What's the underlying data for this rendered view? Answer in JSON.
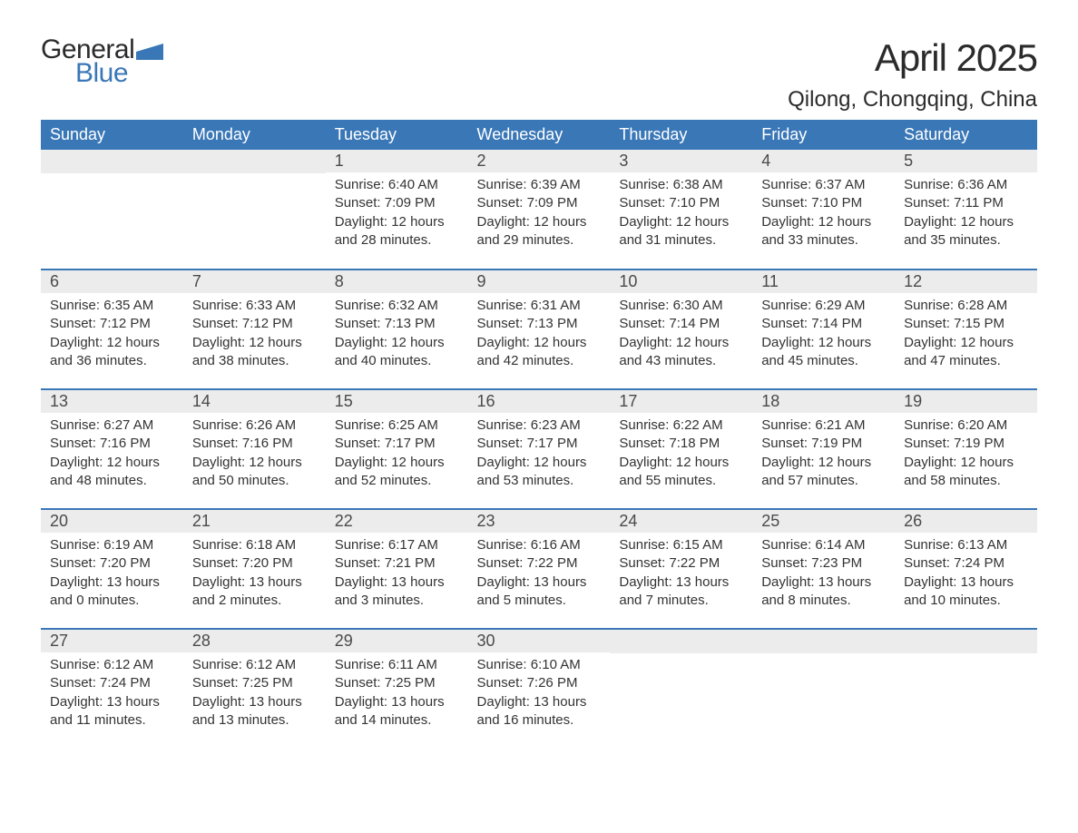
{
  "logo": {
    "line1": "General",
    "line2": "Blue",
    "flag_color": "#3a77b7",
    "text_color": "#2b2b2b"
  },
  "title": "April 2025",
  "location": "Qilong, Chongqing, China",
  "colors": {
    "header_bg": "#3a77b7",
    "header_text": "#ffffff",
    "daynum_bg": "#ececec",
    "daynum_text": "#4a4a4a",
    "body_text": "#333333",
    "row_divider": "#3a77b7",
    "page_bg": "#ffffff"
  },
  "typography": {
    "title_fontsize": 42,
    "location_fontsize": 24,
    "header_fontsize": 18,
    "daynum_fontsize": 18,
    "body_fontsize": 15
  },
  "layout": {
    "columns": 7,
    "rows": 5,
    "first_day_column_index": 2
  },
  "weekdays": [
    "Sunday",
    "Monday",
    "Tuesday",
    "Wednesday",
    "Thursday",
    "Friday",
    "Saturday"
  ],
  "days": [
    {
      "n": 1,
      "sunrise": "6:40 AM",
      "sunset": "7:09 PM",
      "daylight": "12 hours and 28 minutes."
    },
    {
      "n": 2,
      "sunrise": "6:39 AM",
      "sunset": "7:09 PM",
      "daylight": "12 hours and 29 minutes."
    },
    {
      "n": 3,
      "sunrise": "6:38 AM",
      "sunset": "7:10 PM",
      "daylight": "12 hours and 31 minutes."
    },
    {
      "n": 4,
      "sunrise": "6:37 AM",
      "sunset": "7:10 PM",
      "daylight": "12 hours and 33 minutes."
    },
    {
      "n": 5,
      "sunrise": "6:36 AM",
      "sunset": "7:11 PM",
      "daylight": "12 hours and 35 minutes."
    },
    {
      "n": 6,
      "sunrise": "6:35 AM",
      "sunset": "7:12 PM",
      "daylight": "12 hours and 36 minutes."
    },
    {
      "n": 7,
      "sunrise": "6:33 AM",
      "sunset": "7:12 PM",
      "daylight": "12 hours and 38 minutes."
    },
    {
      "n": 8,
      "sunrise": "6:32 AM",
      "sunset": "7:13 PM",
      "daylight": "12 hours and 40 minutes."
    },
    {
      "n": 9,
      "sunrise": "6:31 AM",
      "sunset": "7:13 PM",
      "daylight": "12 hours and 42 minutes."
    },
    {
      "n": 10,
      "sunrise": "6:30 AM",
      "sunset": "7:14 PM",
      "daylight": "12 hours and 43 minutes."
    },
    {
      "n": 11,
      "sunrise": "6:29 AM",
      "sunset": "7:14 PM",
      "daylight": "12 hours and 45 minutes."
    },
    {
      "n": 12,
      "sunrise": "6:28 AM",
      "sunset": "7:15 PM",
      "daylight": "12 hours and 47 minutes."
    },
    {
      "n": 13,
      "sunrise": "6:27 AM",
      "sunset": "7:16 PM",
      "daylight": "12 hours and 48 minutes."
    },
    {
      "n": 14,
      "sunrise": "6:26 AM",
      "sunset": "7:16 PM",
      "daylight": "12 hours and 50 minutes."
    },
    {
      "n": 15,
      "sunrise": "6:25 AM",
      "sunset": "7:17 PM",
      "daylight": "12 hours and 52 minutes."
    },
    {
      "n": 16,
      "sunrise": "6:23 AM",
      "sunset": "7:17 PM",
      "daylight": "12 hours and 53 minutes."
    },
    {
      "n": 17,
      "sunrise": "6:22 AM",
      "sunset": "7:18 PM",
      "daylight": "12 hours and 55 minutes."
    },
    {
      "n": 18,
      "sunrise": "6:21 AM",
      "sunset": "7:19 PM",
      "daylight": "12 hours and 57 minutes."
    },
    {
      "n": 19,
      "sunrise": "6:20 AM",
      "sunset": "7:19 PM",
      "daylight": "12 hours and 58 minutes."
    },
    {
      "n": 20,
      "sunrise": "6:19 AM",
      "sunset": "7:20 PM",
      "daylight": "13 hours and 0 minutes."
    },
    {
      "n": 21,
      "sunrise": "6:18 AM",
      "sunset": "7:20 PM",
      "daylight": "13 hours and 2 minutes."
    },
    {
      "n": 22,
      "sunrise": "6:17 AM",
      "sunset": "7:21 PM",
      "daylight": "13 hours and 3 minutes."
    },
    {
      "n": 23,
      "sunrise": "6:16 AM",
      "sunset": "7:22 PM",
      "daylight": "13 hours and 5 minutes."
    },
    {
      "n": 24,
      "sunrise": "6:15 AM",
      "sunset": "7:22 PM",
      "daylight": "13 hours and 7 minutes."
    },
    {
      "n": 25,
      "sunrise": "6:14 AM",
      "sunset": "7:23 PM",
      "daylight": "13 hours and 8 minutes."
    },
    {
      "n": 26,
      "sunrise": "6:13 AM",
      "sunset": "7:24 PM",
      "daylight": "13 hours and 10 minutes."
    },
    {
      "n": 27,
      "sunrise": "6:12 AM",
      "sunset": "7:24 PM",
      "daylight": "13 hours and 11 minutes."
    },
    {
      "n": 28,
      "sunrise": "6:12 AM",
      "sunset": "7:25 PM",
      "daylight": "13 hours and 13 minutes."
    },
    {
      "n": 29,
      "sunrise": "6:11 AM",
      "sunset": "7:25 PM",
      "daylight": "13 hours and 14 minutes."
    },
    {
      "n": 30,
      "sunrise": "6:10 AM",
      "sunset": "7:26 PM",
      "daylight": "13 hours and 16 minutes."
    }
  ],
  "labels": {
    "sunrise": "Sunrise: ",
    "sunset": "Sunset: ",
    "daylight": "Daylight: "
  }
}
